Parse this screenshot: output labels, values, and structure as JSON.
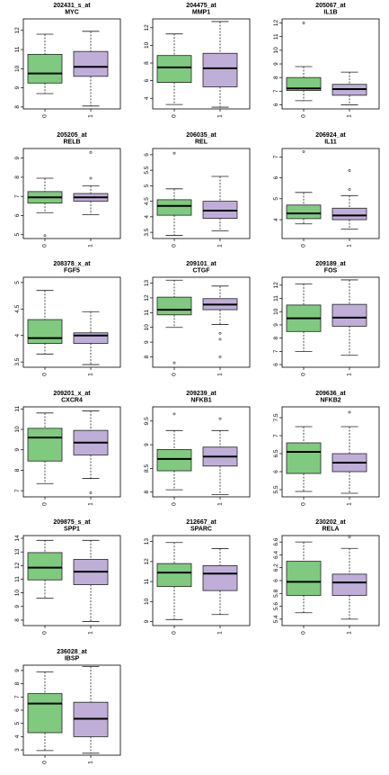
{
  "colors": {
    "group0": "#7fca7f",
    "group1": "#bfaed8",
    "stroke": "#222222"
  },
  "chart_data": [
    {
      "type": "box",
      "probe": "202431_s_at",
      "gene": "MYC",
      "categories": [
        "0",
        "1"
      ],
      "ylim": [
        7.9,
        12.6
      ],
      "yticks": [
        8,
        9,
        10,
        11,
        12
      ],
      "series": [
        {
          "category": "0",
          "whisker_low": 8.7,
          "q1": 9.25,
          "median": 9.75,
          "q3": 10.75,
          "whisker_high": 11.8,
          "outliers": []
        },
        {
          "category": "1",
          "whisker_low": 8.05,
          "q1": 9.6,
          "median": 10.1,
          "q3": 10.9,
          "whisker_high": 11.95,
          "outliers": []
        }
      ]
    },
    {
      "type": "box",
      "probe": "204475_at",
      "gene": "MMP1",
      "categories": [
        "0",
        "1"
      ],
      "ylim": [
        2.8,
        13.0
      ],
      "yticks": [
        4,
        6,
        8,
        10,
        12
      ],
      "series": [
        {
          "category": "0",
          "whisker_low": 3.3,
          "q1": 5.8,
          "median": 7.5,
          "q3": 8.85,
          "whisker_high": 11.3,
          "outliers": []
        },
        {
          "category": "1",
          "whisker_low": 3.0,
          "q1": 5.3,
          "median": 7.4,
          "q3": 9.1,
          "whisker_high": 12.7,
          "outliers": []
        }
      ]
    },
    {
      "type": "box",
      "probe": "205067_at",
      "gene": "IL1B",
      "categories": [
        "0",
        "1"
      ],
      "ylim": [
        5.7,
        12.3
      ],
      "yticks": [
        6,
        7,
        8,
        9,
        10,
        11,
        12
      ],
      "series": [
        {
          "category": "0",
          "whisker_low": 6.3,
          "q1": 7.05,
          "median": 7.2,
          "q3": 8.0,
          "whisker_high": 8.8,
          "outliers": [
            12.0
          ]
        },
        {
          "category": "1",
          "whisker_low": 6.0,
          "q1": 6.7,
          "median": 7.15,
          "q3": 7.5,
          "whisker_high": 8.4,
          "outliers": []
        }
      ]
    },
    {
      "type": "box",
      "probe": "205205_at",
      "gene": "RELB",
      "categories": [
        "0",
        "1"
      ],
      "ylim": [
        4.8,
        9.5
      ],
      "yticks": [
        5,
        6,
        7,
        8,
        9
      ],
      "series": [
        {
          "category": "0",
          "whisker_low": 6.15,
          "q1": 6.65,
          "median": 6.95,
          "q3": 7.25,
          "whisker_high": 7.95,
          "outliers": [
            4.95
          ]
        },
        {
          "category": "1",
          "whisker_low": 6.05,
          "q1": 6.75,
          "median": 6.95,
          "q3": 7.15,
          "whisker_high": 7.55,
          "outliers": [
            7.95,
            9.3
          ]
        }
      ]
    },
    {
      "type": "box",
      "probe": "206035_at",
      "gene": "REL",
      "categories": [
        "0",
        "1"
      ],
      "ylim": [
        3.3,
        6.2
      ],
      "yticks": [
        3.5,
        4.0,
        4.5,
        5.0,
        5.5,
        6.0
      ],
      "series": [
        {
          "category": "0",
          "whisker_low": 3.4,
          "q1": 4.05,
          "median": 4.35,
          "q3": 4.55,
          "whisker_high": 4.9,
          "outliers": [
            6.05
          ]
        },
        {
          "category": "1",
          "whisker_low": 3.55,
          "q1": 3.95,
          "median": 4.2,
          "q3": 4.5,
          "whisker_high": 5.3,
          "outliers": []
        }
      ]
    },
    {
      "type": "box",
      "probe": "206924_at",
      "gene": "IL11",
      "categories": [
        "0",
        "1"
      ],
      "ylim": [
        3.1,
        7.4
      ],
      "yticks": [
        4,
        5,
        6,
        7
      ],
      "series": [
        {
          "category": "0",
          "whisker_low": 3.8,
          "q1": 4.05,
          "median": 4.3,
          "q3": 4.7,
          "whisker_high": 5.3,
          "outliers": [
            7.25
          ]
        },
        {
          "category": "1",
          "whisker_low": 3.55,
          "q1": 4.0,
          "median": 4.2,
          "q3": 4.55,
          "whisker_high": 5.15,
          "outliers": [
            5.45,
            6.35
          ]
        }
      ]
    },
    {
      "type": "box",
      "probe": "208378_x_at",
      "gene": "FGF5",
      "categories": [
        "0",
        "1"
      ],
      "ylim": [
        3.4,
        5.1
      ],
      "yticks": [
        3.5,
        4.0,
        4.5,
        5.0
      ],
      "series": [
        {
          "category": "0",
          "whisker_low": 3.65,
          "q1": 3.85,
          "median": 3.95,
          "q3": 4.3,
          "whisker_high": 4.85,
          "outliers": []
        },
        {
          "category": "1",
          "whisker_low": 3.45,
          "q1": 3.85,
          "median": 4.0,
          "q3": 4.05,
          "whisker_high": 4.45,
          "outliers": []
        }
      ]
    },
    {
      "type": "box",
      "probe": "209101_at",
      "gene": "CTGF",
      "categories": [
        "0",
        "1"
      ],
      "ylim": [
        7.3,
        13.4
      ],
      "yticks": [
        8,
        9,
        10,
        11,
        12,
        13
      ],
      "series": [
        {
          "category": "0",
          "whisker_low": 10.0,
          "q1": 10.85,
          "median": 11.2,
          "q3": 12.05,
          "whisker_high": 13.2,
          "outliers": [
            7.6
          ]
        },
        {
          "category": "1",
          "whisker_low": 10.2,
          "q1": 11.2,
          "median": 11.55,
          "q3": 11.95,
          "whisker_high": 12.8,
          "outliers": [
            8.0,
            9.2,
            9.6
          ]
        }
      ]
    },
    {
      "type": "box",
      "probe": "209189_at",
      "gene": "FOS",
      "categories": [
        "0",
        "1"
      ],
      "ylim": [
        5.8,
        12.6
      ],
      "yticks": [
        6,
        7,
        8,
        9,
        10,
        11,
        12
      ],
      "series": [
        {
          "category": "0",
          "whisker_low": 7.0,
          "q1": 8.5,
          "median": 9.5,
          "q3": 10.5,
          "whisker_high": 12.1,
          "outliers": []
        },
        {
          "category": "1",
          "whisker_low": 6.7,
          "q1": 8.9,
          "median": 9.55,
          "q3": 10.55,
          "whisker_high": 12.4,
          "outliers": []
        }
      ]
    },
    {
      "type": "box",
      "probe": "209201_x_at",
      "gene": "CXCR4",
      "categories": [
        "0",
        "1"
      ],
      "ylim": [
        6.7,
        11.1
      ],
      "yticks": [
        7,
        8,
        9,
        10,
        11
      ],
      "series": [
        {
          "category": "0",
          "whisker_low": 7.35,
          "q1": 8.45,
          "median": 9.6,
          "q3": 10.05,
          "whisker_high": 10.8,
          "outliers": []
        },
        {
          "category": "1",
          "whisker_low": 7.6,
          "q1": 8.75,
          "median": 9.35,
          "q3": 9.95,
          "whisker_high": 10.9,
          "outliers": [
            6.9
          ]
        }
      ]
    },
    {
      "type": "box",
      "probe": "209239_at",
      "gene": "NFKB1",
      "categories": [
        "0",
        "1"
      ],
      "ylim": [
        7.9,
        9.8
      ],
      "yticks": [
        8.0,
        8.5,
        9.0,
        9.5
      ],
      "series": [
        {
          "category": "0",
          "whisker_low": 8.05,
          "q1": 8.45,
          "median": 8.7,
          "q3": 8.9,
          "whisker_high": 9.3,
          "outliers": [
            9.65
          ]
        },
        {
          "category": "1",
          "whisker_low": 7.95,
          "q1": 8.55,
          "median": 8.75,
          "q3": 8.95,
          "whisker_high": 9.3,
          "outliers": [
            9.55
          ]
        }
      ]
    },
    {
      "type": "box",
      "probe": "209636_at",
      "gene": "NFKB2",
      "categories": [
        "0",
        "1"
      ],
      "ylim": [
        5.3,
        7.8
      ],
      "yticks": [
        5.5,
        6.0,
        6.5,
        7.0,
        7.5
      ],
      "series": [
        {
          "category": "0",
          "whisker_low": 5.45,
          "q1": 5.95,
          "median": 6.55,
          "q3": 6.8,
          "whisker_high": 7.25,
          "outliers": []
        },
        {
          "category": "1",
          "whisker_low": 5.4,
          "q1": 6.0,
          "median": 6.25,
          "q3": 6.5,
          "whisker_high": 7.25,
          "outliers": [
            7.65
          ]
        }
      ]
    },
    {
      "type": "box",
      "probe": "209875_s_at",
      "gene": "SPP1",
      "categories": [
        "0",
        "1"
      ],
      "ylim": [
        7.6,
        14.2
      ],
      "yticks": [
        8,
        9,
        10,
        11,
        12,
        13,
        14
      ],
      "series": [
        {
          "category": "0",
          "whisker_low": 9.6,
          "q1": 10.95,
          "median": 11.85,
          "q3": 12.95,
          "whisker_high": 13.85,
          "outliers": []
        },
        {
          "category": "1",
          "whisker_low": 7.9,
          "q1": 10.6,
          "median": 11.55,
          "q3": 12.45,
          "whisker_high": 13.85,
          "outliers": []
        }
      ]
    },
    {
      "type": "box",
      "probe": "212667_at",
      "gene": "SPARC",
      "categories": [
        "0",
        "1"
      ],
      "ylim": [
        8.8,
        13.3
      ],
      "yticks": [
        9,
        10,
        11,
        12,
        13
      ],
      "series": [
        {
          "category": "0",
          "whisker_low": 9.1,
          "q1": 10.75,
          "median": 11.45,
          "q3": 11.9,
          "whisker_high": 12.95,
          "outliers": []
        },
        {
          "category": "1",
          "whisker_low": 9.35,
          "q1": 10.55,
          "median": 11.4,
          "q3": 11.8,
          "whisker_high": 12.65,
          "outliers": []
        }
      ]
    },
    {
      "type": "box",
      "probe": "230202_at",
      "gene": "RELA",
      "categories": [
        "0",
        "1"
      ],
      "ylim": [
        5.3,
        6.7
      ],
      "yticks": [
        5.4,
        5.6,
        5.8,
        6.0,
        6.2,
        6.4,
        6.6
      ],
      "series": [
        {
          "category": "0",
          "whisker_low": 5.5,
          "q1": 5.77,
          "median": 5.98,
          "q3": 6.3,
          "whisker_high": 6.6,
          "outliers": []
        },
        {
          "category": "1",
          "whisker_low": 5.4,
          "q1": 5.77,
          "median": 5.97,
          "q3": 6.1,
          "whisker_high": 6.5,
          "outliers": [
            6.68
          ]
        }
      ]
    },
    {
      "type": "box",
      "probe": "236028_at",
      "gene": "IBSP",
      "categories": [
        "0",
        "1"
      ],
      "ylim": [
        2.6,
        9.4
      ],
      "yticks": [
        3,
        4,
        5,
        6,
        7,
        8,
        9
      ],
      "series": [
        {
          "category": "0",
          "whisker_low": 2.95,
          "q1": 4.3,
          "median": 6.5,
          "q3": 7.25,
          "whisker_high": 8.9,
          "outliers": []
        },
        {
          "category": "1",
          "whisker_low": 2.75,
          "q1": 4.0,
          "median": 5.35,
          "q3": 6.6,
          "whisker_high": 9.3,
          "outliers": []
        }
      ]
    }
  ]
}
